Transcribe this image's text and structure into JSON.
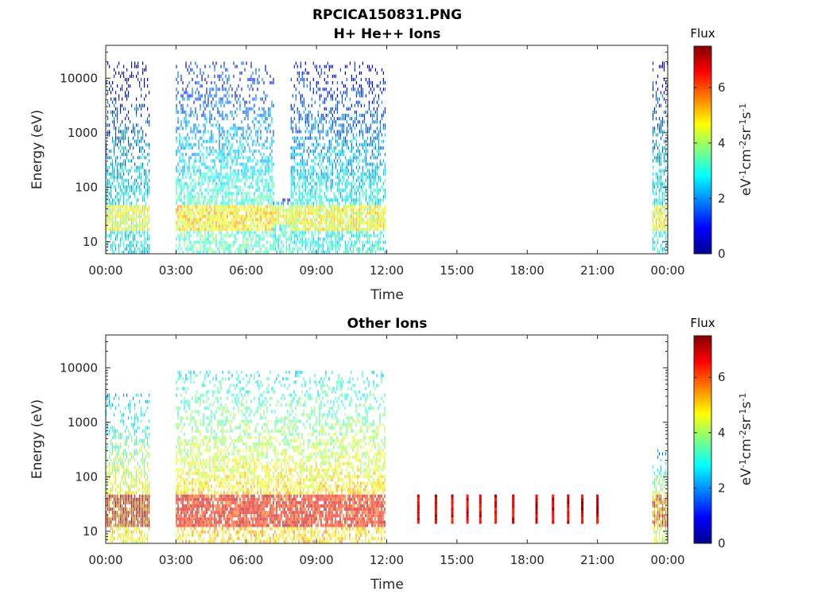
{
  "figure_title": "RPCICA150831.PNG",
  "chart_data": [
    {
      "type": "heatmap",
      "title": "H+ He++ Ions",
      "xlabel": "Time",
      "ylabel": "Energy (eV)",
      "x_ticks": [
        "00:00",
        "03:00",
        "06:00",
        "09:00",
        "12:00",
        "15:00",
        "18:00",
        "21:00",
        "00:00"
      ],
      "x_range_hours": [
        0,
        24
      ],
      "y_scale": "log",
      "y_ticks": [
        10,
        100,
        1000,
        10000
      ],
      "y_tick_labels": [
        "10",
        "100",
        "1000",
        "10000"
      ],
      "y_range_eV": [
        6,
        40000
      ],
      "colorbar": {
        "title": "Flux",
        "label": "eV-1cm-2sr-1s-1",
        "range": [
          0,
          7.5
        ],
        "ticks": [
          "0",
          "2",
          "4",
          "6"
        ],
        "colormap": "jet"
      },
      "data_intervals_hours": [
        {
          "start": 0.0,
          "end": 1.85,
          "e_max": 18000,
          "band_eV": [
            15,
            45
          ],
          "band_flux": 4.3
        },
        {
          "start": 3.0,
          "end": 7.15,
          "e_max": 18000,
          "band_eV": [
            15,
            45
          ],
          "band_flux": 4.8
        },
        {
          "start": 7.15,
          "end": 7.9,
          "e_max": 60,
          "band_eV": [
            20,
            45
          ],
          "band_flux": 4.5
        },
        {
          "start": 7.9,
          "end": 9.6,
          "e_max": 18000,
          "band_eV": [
            15,
            45
          ],
          "band_flux": 4.5
        },
        {
          "start": 9.6,
          "end": 11.95,
          "e_max": 18000,
          "band_eV": [
            15,
            45
          ],
          "band_flux": 4.5
        },
        {
          "start": 23.35,
          "end": 24.0,
          "e_max": 18000,
          "band_eV": [
            15,
            45
          ],
          "band_flux": 4.5
        }
      ]
    },
    {
      "type": "heatmap",
      "title": "Other Ions",
      "xlabel": "Time",
      "ylabel": "Energy (eV)",
      "x_ticks": [
        "00:00",
        "03:00",
        "06:00",
        "09:00",
        "12:00",
        "15:00",
        "18:00",
        "21:00",
        "00:00"
      ],
      "x_range_hours": [
        0,
        24
      ],
      "y_scale": "log",
      "y_ticks": [
        10,
        100,
        1000,
        10000
      ],
      "y_tick_labels": [
        "10",
        "100",
        "1000",
        "10000"
      ],
      "y_range_eV": [
        6,
        40000
      ],
      "colorbar": {
        "title": "Flux",
        "label": "eV-1cm-2sr-1s-1",
        "range": [
          0,
          7.5
        ],
        "ticks": [
          "0",
          "2",
          "4",
          "6"
        ],
        "colormap": "jet"
      },
      "data_intervals_hours": [
        {
          "start": 0.0,
          "end": 1.85,
          "e_max": 3000,
          "band_eV": [
            12,
            45
          ],
          "band_flux": 6.2
        },
        {
          "start": 3.0,
          "end": 11.95,
          "e_max": 8000,
          "band_eV": [
            12,
            45
          ],
          "band_flux": 6.5
        },
        {
          "start": 23.35,
          "end": 24.0,
          "e_max": 300,
          "band_eV": [
            12,
            45
          ],
          "band_flux": 5.8
        }
      ],
      "narrow_bursts_hours": [
        13.35,
        14.1,
        14.8,
        15.45,
        16.0,
        16.65,
        17.4,
        18.4,
        19.1,
        19.75,
        20.35,
        21.0
      ],
      "burst_band_eV": [
        13,
        45
      ],
      "burst_flux": 6.8
    }
  ]
}
